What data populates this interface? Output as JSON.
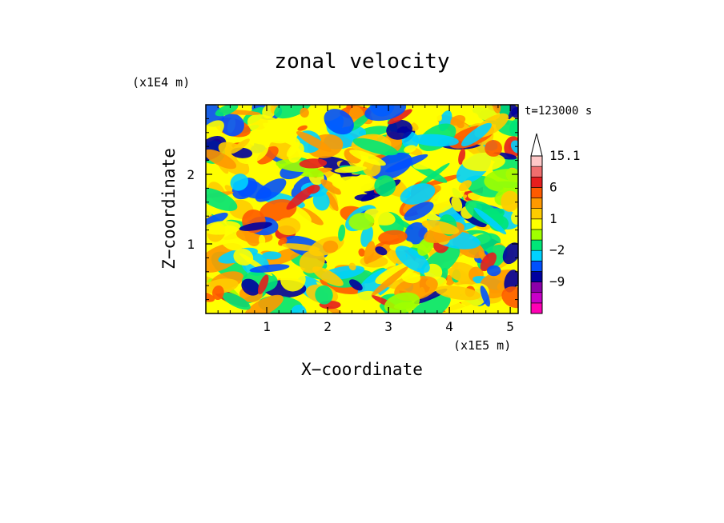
{
  "chart_data": {
    "type": "heatmap",
    "title": "zonal velocity",
    "xlabel": "X−coordinate",
    "ylabel": "Z−coordinate",
    "x_unit": "(x1E5 m)",
    "y_unit": "(x1E4 m)",
    "time_label": "t=123000 s",
    "xlim": [
      0,
      5.13
    ],
    "ylim": [
      0,
      3.0
    ],
    "x_ticks": [
      1,
      2,
      3,
      4,
      5
    ],
    "y_ticks": [
      1,
      2
    ],
    "x_tick_labels": [
      "1",
      "2",
      "3",
      "4",
      "5"
    ],
    "y_tick_labels": [
      "1",
      "2"
    ],
    "colorbar": {
      "levels": [
        -15,
        -12,
        -9,
        -6,
        -3,
        -2,
        -1,
        0,
        1,
        2,
        3,
        6,
        9,
        12,
        15.1
      ],
      "colors": [
        "#ff00b4",
        "#c800c8",
        "#8c00aa",
        "#0000a0",
        "#0050ff",
        "#00d2ff",
        "#00e678",
        "#a0ff00",
        "#ffff00",
        "#ffcc00",
        "#ff9900",
        "#ff5a00",
        "#e61e1e",
        "#f06e6e",
        "#ffc8c8"
      ],
      "labels": [
        "15.1",
        "6",
        "1",
        "−2",
        "−9"
      ],
      "label_values": [
        15.1,
        6,
        1,
        -2,
        -9
      ],
      "extend": "max"
    },
    "grid": false
  }
}
